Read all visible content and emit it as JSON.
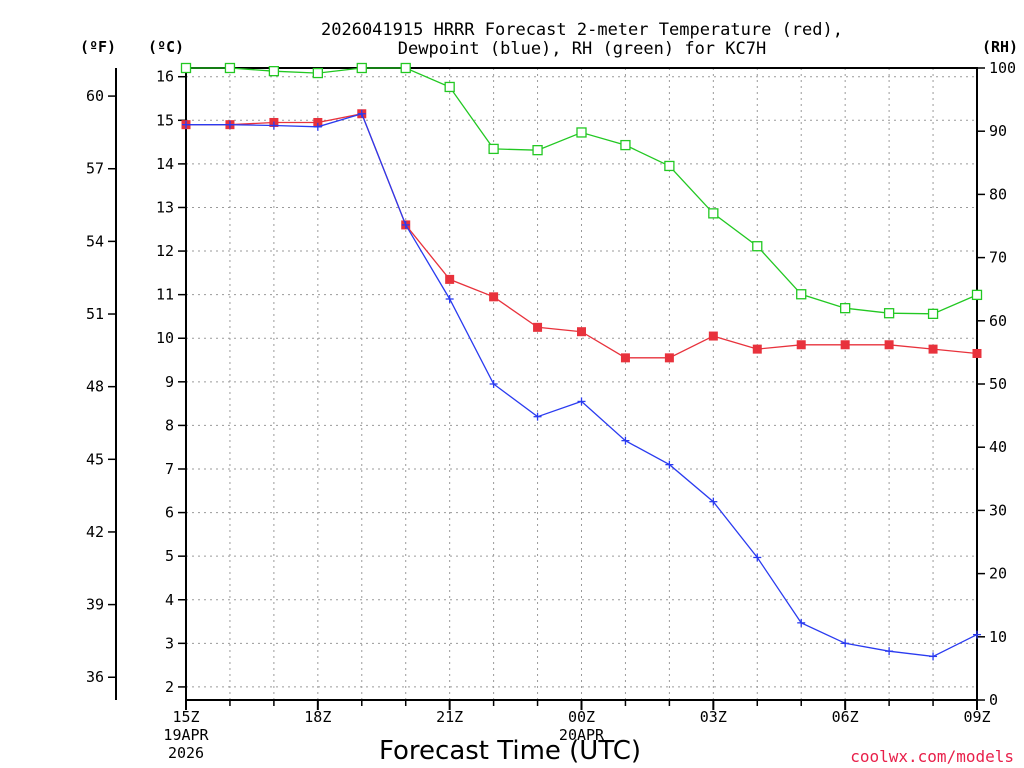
{
  "chart_data": {
    "type": "line",
    "title_lines": [
      "2026041915 HRRR Forecast 2-meter Temperature (red),",
      "Dewpoint (blue), RH (green) for KC7H"
    ],
    "xlabel": "Forecast Time (UTC)",
    "left_unit_f": "(ºF)",
    "left_unit_c": "(ºC)",
    "right_unit": "(RH)",
    "credit": "coolwx.com/models",
    "x_hours": [
      0,
      1,
      2,
      3,
      4,
      5,
      6,
      7,
      8,
      9,
      10,
      11,
      12,
      13,
      14,
      15,
      16,
      17,
      18
    ],
    "x_ticks": [
      {
        "hour": 0,
        "label": "15Z",
        "sub": [
          "19APR",
          "2026"
        ]
      },
      {
        "hour": 3,
        "label": "18Z",
        "sub": []
      },
      {
        "hour": 6,
        "label": "21Z",
        "sub": []
      },
      {
        "hour": 9,
        "label": "00Z",
        "sub": [
          "20APR"
        ]
      },
      {
        "hour": 12,
        "label": "03Z",
        "sub": []
      },
      {
        "hour": 15,
        "label": "06Z",
        "sub": []
      },
      {
        "hour": 18,
        "label": "09Z",
        "sub": []
      }
    ],
    "celsius_ticks": [
      "2",
      "3",
      "4",
      "5",
      "6",
      "7",
      "8",
      "9",
      "10",
      "11",
      "12",
      "13",
      "14",
      "15",
      "16"
    ],
    "celsius_range": [
      1.7,
      16.2
    ],
    "fahrenheit_ticks": [
      "36",
      "39",
      "42",
      "45",
      "48",
      "51",
      "54",
      "57",
      "60"
    ],
    "rh_ticks": [
      "0",
      "10",
      "20",
      "30",
      "40",
      "50",
      "60",
      "70",
      "80",
      "90",
      "100"
    ],
    "rh_range": [
      0,
      100
    ],
    "series": [
      {
        "name": "Temperature",
        "color": "#e8323c",
        "marker": "filled-square",
        "axis": "celsius",
        "values": [
          14.9,
          14.9,
          14.95,
          14.95,
          15.15,
          12.6,
          11.35,
          10.95,
          10.25,
          10.15,
          9.55,
          9.55,
          10.05,
          9.75,
          9.85,
          9.85,
          9.85,
          9.75,
          9.65
        ]
      },
      {
        "name": "Dewpoint",
        "color": "#2a3bf0",
        "marker": "plus",
        "axis": "celsius",
        "values": [
          14.9,
          14.9,
          14.88,
          14.85,
          15.15,
          12.6,
          10.9,
          8.95,
          8.2,
          8.55,
          7.65,
          7.1,
          6.25,
          4.97,
          3.47,
          3.0,
          2.82,
          2.7,
          3.2
        ]
      },
      {
        "name": "RH",
        "color": "#22c822",
        "marker": "open-square",
        "axis": "rh",
        "values": [
          100,
          100,
          99.5,
          99.2,
          100,
          100,
          97,
          87.2,
          87,
          89.8,
          87.8,
          84.5,
          77,
          71.8,
          64.2,
          62,
          61.2,
          61.1,
          64.1
        ]
      }
    ]
  }
}
